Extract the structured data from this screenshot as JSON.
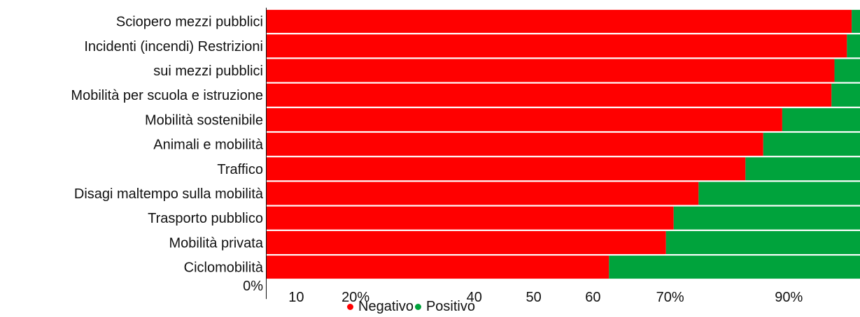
{
  "chart_data": {
    "type": "bar",
    "orientation": "horizontal",
    "stacked": true,
    "categories": [
      "Sciopero mezzi pubblici",
      "Incidenti  (incendi) Restrizioni",
      "sui mezzi pubblici",
      "Mobilità per scuola e istruzione",
      "Mobilità sostenibile",
      "Animali e mobilità",
      "Traffico",
      "Disagi maltempo sulla mobilità",
      "Trasporto pubblico",
      "Mobilità privata",
      "Ciclomobilità"
    ],
    "series": [
      {
        "name": "Negativo",
        "color": "#ff0000",
        "values": [
          98.6,
          97.8,
          95.7,
          95.2,
          86.9,
          83.7,
          80.7,
          72.8,
          68.6,
          67.3,
          57.7
        ]
      },
      {
        "name": "Positivo",
        "color": "#00a33c",
        "values": [
          1.4,
          2.2,
          4.3,
          4.8,
          13.1,
          16.3,
          19.3,
          27.2,
          31.4,
          32.7,
          42.3
        ]
      }
    ],
    "xlim": [
      0,
      100
    ],
    "x_ticks": [
      {
        "label": "0%",
        "value": 0
      },
      {
        "label": "10",
        "value": 5
      },
      {
        "label": "20%",
        "value": 15
      },
      {
        "label": "40",
        "value": 35
      },
      {
        "label": "50",
        "value": 45
      },
      {
        "label": "60",
        "value": 55
      },
      {
        "label": "70%",
        "value": 68
      },
      {
        "label": "90%",
        "value": 88
      }
    ],
    "legend": {
      "position": "bottom-center"
    }
  }
}
